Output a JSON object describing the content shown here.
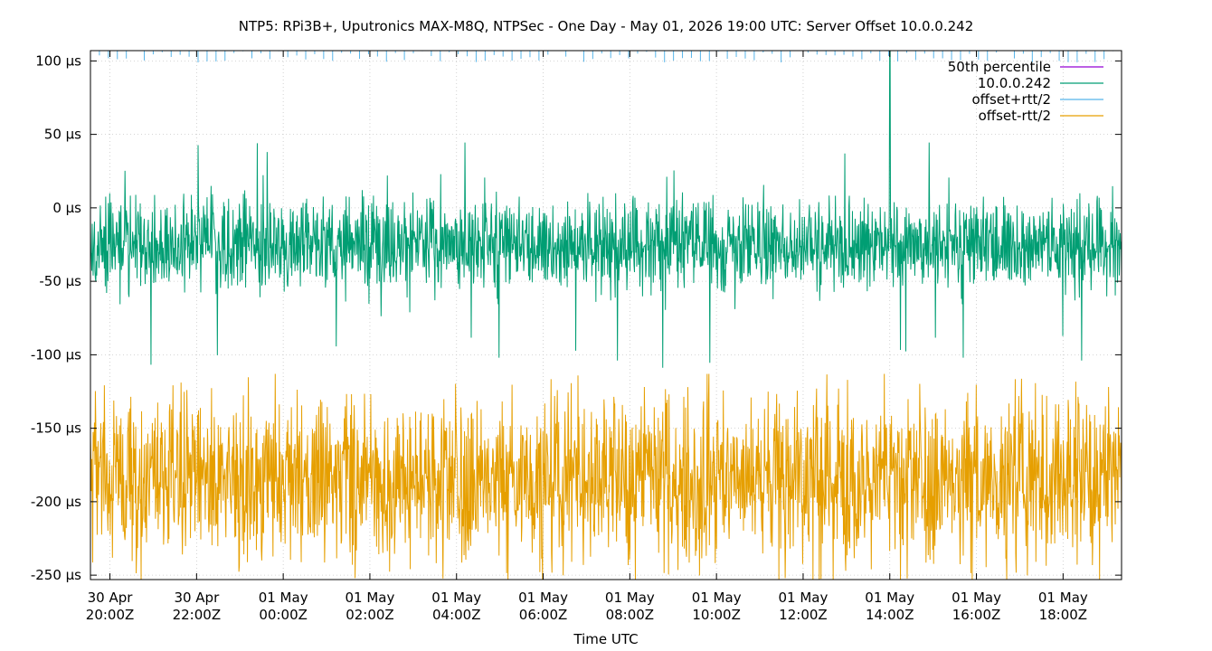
{
  "chart_data": {
    "type": "line",
    "title": "NTP5: RPi3B+, Uputronics MAX-M8Q, NTPSec - One Day - May 01, 2026 19:00 UTC: Server Offset 10.0.0.242",
    "xlabel": "Time UTC",
    "ylabel": "",
    "ylim": [
      -253,
      107
    ],
    "xlim_hours": [
      19.55,
      43.35
    ],
    "grid": true,
    "legend_position": "top-right",
    "y_ticks": [
      {
        "value": 100,
        "label": "100 µs"
      },
      {
        "value": 50,
        "label": "50 µs"
      },
      {
        "value": 0,
        "label": "0 µs"
      },
      {
        "value": -50,
        "label": "-50 µs"
      },
      {
        "value": -100,
        "label": "-100 µs"
      },
      {
        "value": -150,
        "label": "-150 µs"
      },
      {
        "value": -200,
        "label": "-200 µs"
      },
      {
        "value": -250,
        "label": "-250 µs"
      }
    ],
    "x_ticks": [
      {
        "hour": 20,
        "line1": "30 Apr",
        "line2": "20:00Z"
      },
      {
        "hour": 22,
        "line1": "30 Apr",
        "line2": "22:00Z"
      },
      {
        "hour": 24,
        "line1": "01 May",
        "line2": "00:00Z"
      },
      {
        "hour": 26,
        "line1": "01 May",
        "line2": "02:00Z"
      },
      {
        "hour": 28,
        "line1": "01 May",
        "line2": "04:00Z"
      },
      {
        "hour": 30,
        "line1": "01 May",
        "line2": "06:00Z"
      },
      {
        "hour": 32,
        "line1": "01 May",
        "line2": "08:00Z"
      },
      {
        "hour": 34,
        "line1": "01 May",
        "line2": "10:00Z"
      },
      {
        "hour": 36,
        "line1": "01 May",
        "line2": "12:00Z"
      },
      {
        "hour": 38,
        "line1": "01 May",
        "line2": "14:00Z"
      },
      {
        "hour": 40,
        "line1": "01 May",
        "line2": "16:00Z"
      },
      {
        "hour": 42,
        "line1": "01 May",
        "line2": "18:00Z"
      }
    ],
    "series": [
      {
        "name": "50th percentile",
        "color": "#9400d3",
        "values": []
      },
      {
        "name": "10.0.0.242",
        "color": "#009e73",
        "center": -25,
        "typical_range": [
          -75,
          20
        ],
        "min": -115,
        "max": 107
      },
      {
        "name": "offset+rtt/2",
        "color": "#56b4e9",
        "typical_range": [
          107,
          150
        ]
      },
      {
        "name": "offset-rtt/2",
        "color": "#e69f00",
        "center": -185,
        "typical_range": [
          -253,
          -115
        ],
        "min": -253,
        "max": -113
      }
    ]
  }
}
